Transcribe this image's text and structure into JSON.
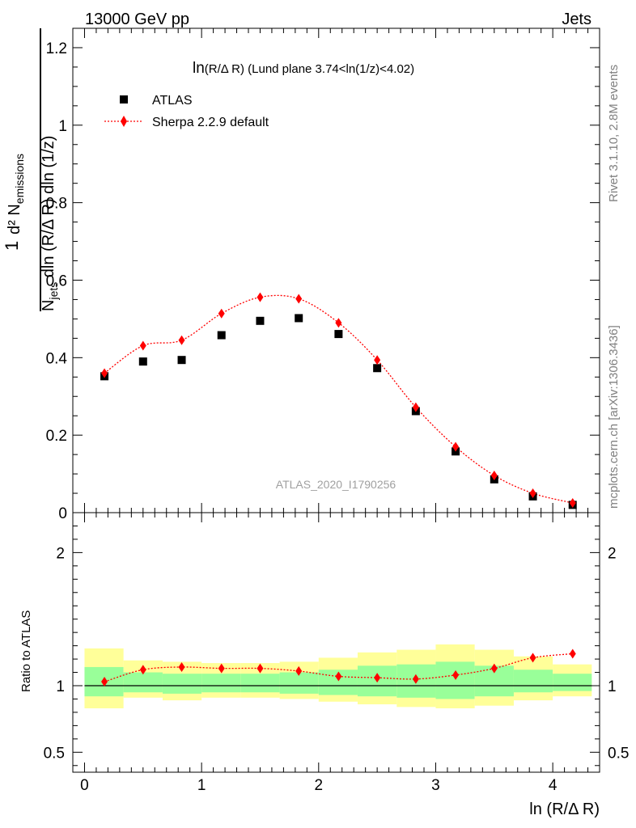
{
  "header": {
    "left": "13000 GeV pp",
    "right": "Jets"
  },
  "side_labels": {
    "rivet": "Rivet 3.1.10,  2.8M events",
    "mcplots": "mcplots.cern.ch [arXiv:1306.3436]"
  },
  "watermark": "ATLAS_2020_I1790256",
  "colors": {
    "data": "#000000",
    "mc": "#ff0000",
    "band_inner": "#99ff99",
    "band_outer": "#ffff99"
  },
  "chart_data": [
    {
      "type": "scatter",
      "title": "ln(R/Δ R) (Lund plane 3.74<ln(1/z)<4.02)",
      "ylabel": {
        "frac": "1",
        "den": "N",
        "den_sub": "jets",
        "den_rest": " dln (R/Δ R) dln (1/z)",
        "num": "d² N",
        "num_sub": "emissions"
      },
      "xlim": [
        -0.1,
        4.4
      ],
      "ylim": [
        0,
        1.25
      ],
      "yticks": [
        0,
        0.2,
        0.4,
        0.6,
        0.8,
        1,
        1.2
      ],
      "ytick_labels": [
        "0",
        "0.2",
        "0.4",
        "0.6",
        "0.8",
        "1",
        "1.2"
      ],
      "legend_position": "top-left",
      "series": [
        {
          "name": "ATLAS",
          "marker": "square",
          "x": [
            0.17,
            0.5,
            0.83,
            1.17,
            1.5,
            1.83,
            2.17,
            2.5,
            2.83,
            3.17,
            3.5,
            3.83,
            4.17
          ],
          "values": [
            0.352,
            0.39,
            0.394,
            0.458,
            0.495,
            0.502,
            0.461,
            0.373,
            0.262,
            0.158,
            0.086,
            0.042,
            0.02
          ]
        },
        {
          "name": "Sherpa 2.2.9 default",
          "marker": "diamond",
          "x": [
            0.17,
            0.5,
            0.83,
            1.17,
            1.5,
            1.83,
            2.17,
            2.5,
            2.83,
            3.17,
            3.5,
            3.83,
            4.17
          ],
          "values": [
            0.36,
            0.431,
            0.445,
            0.514,
            0.556,
            0.552,
            0.49,
            0.394,
            0.272,
            0.17,
            0.096,
            0.05,
            0.025
          ]
        }
      ]
    },
    {
      "type": "line",
      "ylabel": "Ratio to ATLAS",
      "xlabel": "ln (R/Δ R)",
      "xlim": [
        -0.1,
        4.4
      ],
      "ylim": [
        0.35,
        2.3
      ],
      "xticks": [
        0,
        1,
        2,
        3,
        4
      ],
      "xtick_labels": [
        "0",
        "1",
        "2",
        "3",
        "4"
      ],
      "yticks": [
        0.5,
        1,
        2
      ],
      "ytick_labels": [
        "0.5",
        "1",
        "2"
      ],
      "bins": [
        0,
        0.333,
        0.667,
        1,
        1.333,
        1.667,
        2,
        2.333,
        2.667,
        3,
        3.333,
        3.667,
        4,
        4.333
      ],
      "band_inner": [
        [
          0.92,
          1.14
        ],
        [
          0.95,
          1.1
        ],
        [
          0.94,
          1.09
        ],
        [
          0.95,
          1.09
        ],
        [
          0.95,
          1.09
        ],
        [
          0.94,
          1.1
        ],
        [
          0.93,
          1.12
        ],
        [
          0.92,
          1.15
        ],
        [
          0.91,
          1.16
        ],
        [
          0.9,
          1.18
        ],
        [
          0.92,
          1.15
        ],
        [
          0.95,
          1.12
        ],
        [
          0.96,
          1.09
        ]
      ],
      "band_outer": [
        [
          0.83,
          1.28
        ],
        [
          0.91,
          1.19
        ],
        [
          0.89,
          1.18
        ],
        [
          0.91,
          1.17
        ],
        [
          0.91,
          1.17
        ],
        [
          0.9,
          1.18
        ],
        [
          0.88,
          1.21
        ],
        [
          0.86,
          1.25
        ],
        [
          0.84,
          1.27
        ],
        [
          0.83,
          1.31
        ],
        [
          0.85,
          1.27
        ],
        [
          0.89,
          1.22
        ],
        [
          0.92,
          1.16
        ]
      ],
      "series": [
        {
          "name": "Sherpa 2.2.9 default",
          "x": [
            0.17,
            0.5,
            0.83,
            1.17,
            1.5,
            1.83,
            2.17,
            2.5,
            2.83,
            3.17,
            3.5,
            3.83,
            4.17
          ],
          "values": [
            1.03,
            1.12,
            1.14,
            1.13,
            1.13,
            1.11,
            1.07,
            1.06,
            1.05,
            1.08,
            1.13,
            1.21,
            1.24
          ]
        }
      ]
    }
  ]
}
